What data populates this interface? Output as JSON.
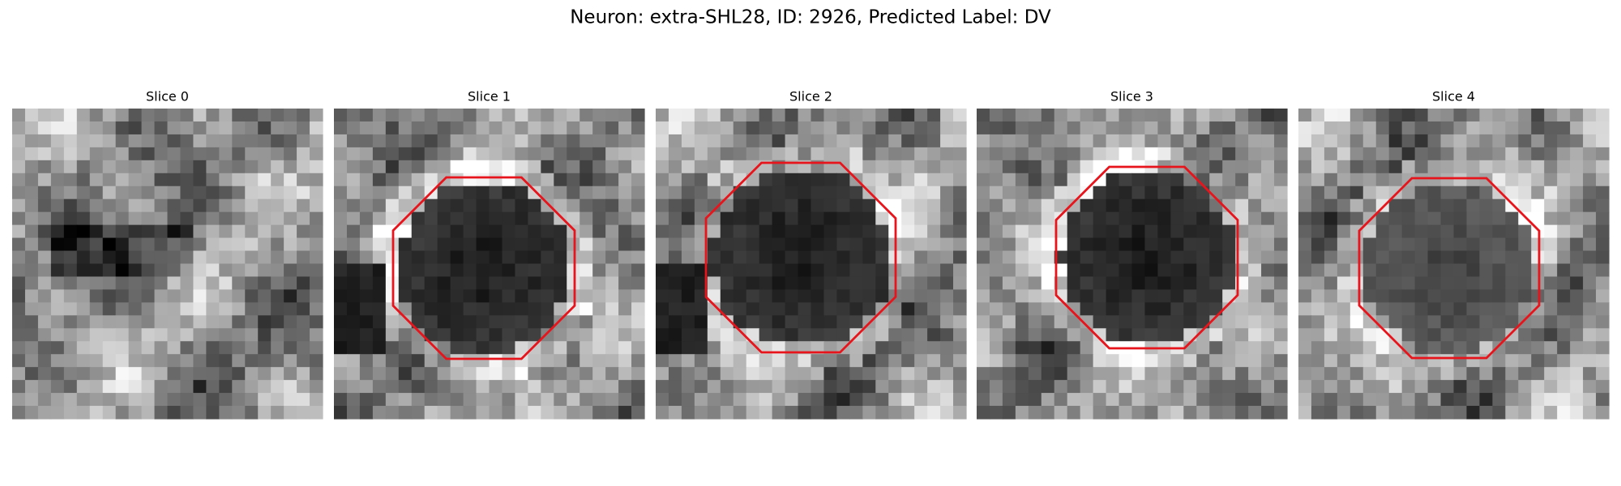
{
  "title": "Neuron: extra-SHL28, ID: 2926, Predicted Label: DV",
  "panels": [
    {
      "title": "Slice 0"
    },
    {
      "title": "Slice 1"
    },
    {
      "title": "Slice 2"
    },
    {
      "title": "Slice 3"
    },
    {
      "title": "Slice 4"
    }
  ]
}
